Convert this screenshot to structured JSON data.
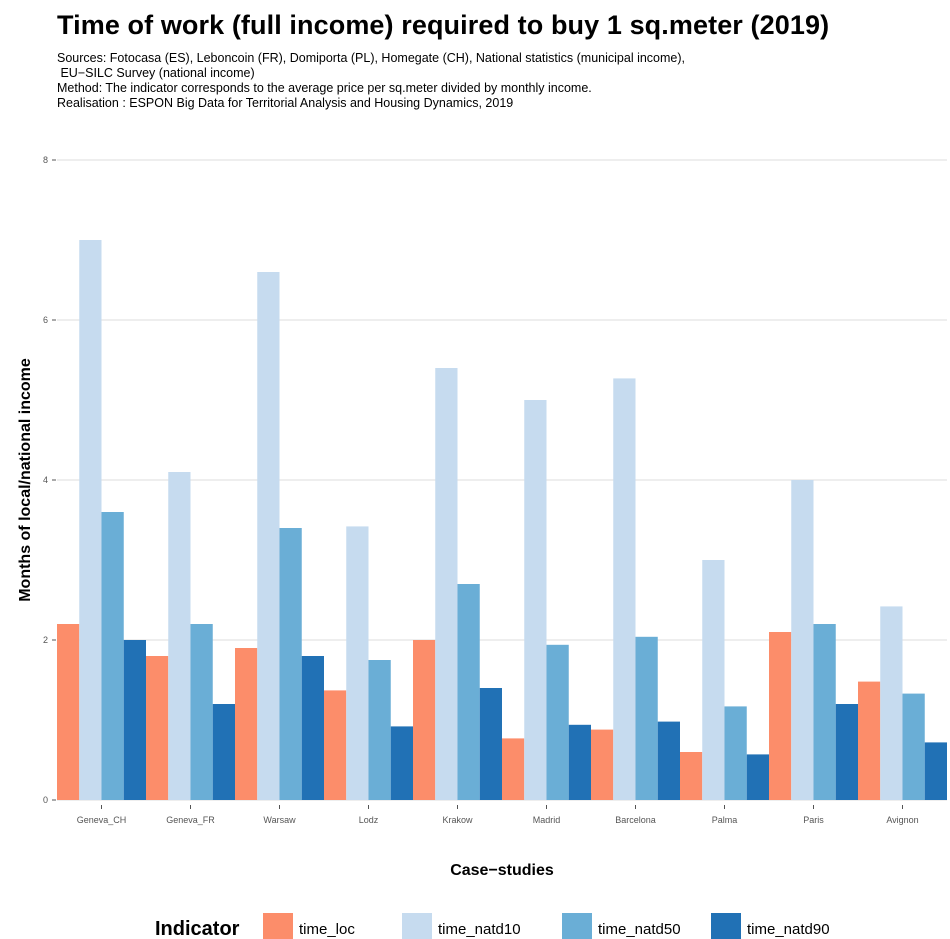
{
  "chart_data": {
    "type": "bar",
    "title": "Time of work (full income) required to buy 1 sq.meter (2019)",
    "subtitle": [
      "Sources: Fotocasa (ES), Leboncoin (FR), Domiporta (PL), Homegate (CH), National statistics (municipal income),",
      " EU−SILC Survey (national income)",
      "Method: The indicator corresponds to the average price per sq.meter divided by monthly income.",
      "Realisation : ESPON Big Data for Territorial Analysis and Housing Dynamics, 2019"
    ],
    "xlabel": "Case−studies",
    "ylabel": "Months of local/national income",
    "ylim": [
      0,
      8
    ],
    "yticks": [
      0,
      2,
      4,
      6,
      8
    ],
    "grid": true,
    "legend_position": "bottom",
    "legend_title": "Indicator",
    "categories": [
      "Geneva_CH",
      "Geneva_FR",
      "Warsaw",
      "Lodz",
      "Krakow",
      "Madrid",
      "Barcelona",
      "Palma",
      "Paris",
      "Avignon"
    ],
    "series": [
      {
        "name": "time_loc",
        "color": "#fc8d6a",
        "values": [
          2.2,
          1.8,
          1.9,
          1.37,
          2.0,
          0.77,
          0.88,
          0.6,
          2.1,
          1.48
        ]
      },
      {
        "name": "time_natd10",
        "color": "#c6dbef",
        "values": [
          7.0,
          4.1,
          6.6,
          3.42,
          5.4,
          5.0,
          5.27,
          3.0,
          4.0,
          2.42
        ]
      },
      {
        "name": "time_natd50",
        "color": "#6aaed6",
        "values": [
          3.6,
          2.2,
          3.4,
          1.75,
          2.7,
          1.94,
          2.04,
          1.17,
          2.2,
          1.33
        ]
      },
      {
        "name": "time_natd90",
        "color": "#2171b5",
        "values": [
          2.0,
          1.2,
          1.8,
          0.92,
          1.4,
          0.94,
          0.98,
          0.57,
          1.2,
          0.72
        ]
      }
    ]
  }
}
